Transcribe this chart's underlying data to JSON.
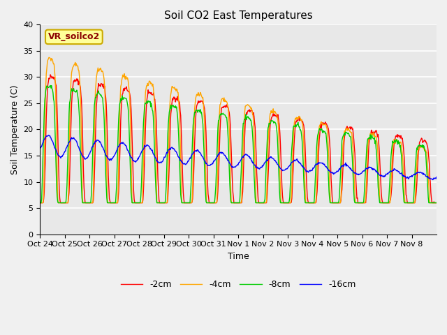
{
  "title": "Soil CO2 East Temperatures",
  "xlabel": "Time",
  "ylabel": "Soil Temperature (C)",
  "ylim": [
    0,
    40
  ],
  "yticks": [
    0,
    5,
    10,
    15,
    20,
    25,
    30,
    35,
    40
  ],
  "x_labels": [
    "Oct 24",
    "Oct 25",
    "Oct 26",
    "Oct 27",
    "Oct 28",
    "Oct 29",
    "Oct 30",
    "Oct 31",
    "Nov 1",
    "Nov 2",
    "Nov 3",
    "Nov 4",
    "Nov 5",
    "Nov 6",
    "Nov 7",
    "Nov 8"
  ],
  "annotation": "VR_soilco2",
  "line_colors": {
    "-2cm": "#ff0000",
    "-4cm": "#ffa500",
    "-8cm": "#00cc00",
    "-16cm": "#0000ff"
  },
  "legend_labels": [
    "-2cm",
    "-4cm",
    "-8cm",
    "-16cm"
  ],
  "fig_facecolor": "#f0f0f0",
  "plot_bg_color": "#e8e8e8"
}
